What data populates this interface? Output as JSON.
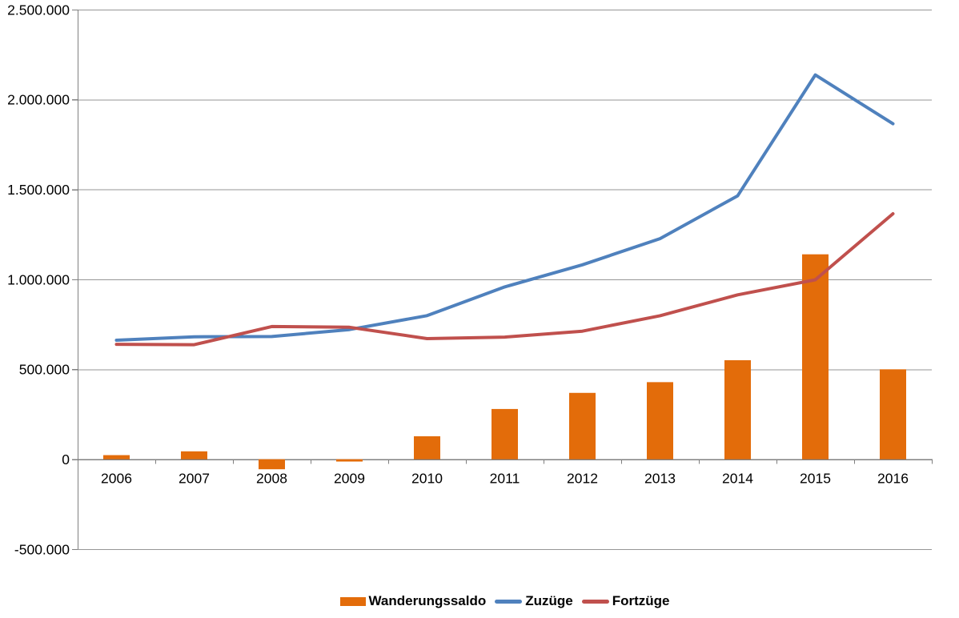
{
  "chart_data": {
    "type": "combo",
    "title": "",
    "categories": [
      "2006",
      "2007",
      "2008",
      "2009",
      "2010",
      "2011",
      "2012",
      "2013",
      "2014",
      "2015",
      "2016"
    ],
    "series": [
      {
        "name": "Wanderungssaldo",
        "chart_type": "bar",
        "color": "#E36C0A",
        "values": [
          22791,
          43912,
          -55743,
          -12782,
          127677,
          279330,
          368945,
          428607,
          550483,
          1139402,
          499944
        ]
      },
      {
        "name": "Zuzüge",
        "chart_type": "line",
        "color": "#4F81BD",
        "values": [
          661855,
          680766,
          682146,
          721014,
          798282,
          958299,
          1080936,
          1226493,
          1464724,
          2136954,
          1865122
        ]
      },
      {
        "name": "Fortzüge",
        "chart_type": "line",
        "color": "#C0504D",
        "values": [
          639064,
          636854,
          737889,
          733796,
          670605,
          678969,
          711991,
          797886,
          914241,
          997552,
          1365178
        ]
      }
    ],
    "xlabel": "",
    "ylabel": "",
    "ylim": [
      -500000,
      2500000
    ],
    "y_axis": {
      "tick_interval": 500000,
      "ticks": [
        {
          "value": 2500000,
          "label": "2.500.000"
        },
        {
          "value": 2000000,
          "label": "2.000.000"
        },
        {
          "value": 1500000,
          "label": "1.500.000"
        },
        {
          "value": 1000000,
          "label": "1.000.000"
        },
        {
          "value": 500000,
          "label": "500.000"
        },
        {
          "value": 0,
          "label": "0"
        },
        {
          "value": -500000,
          "label": "-500.000"
        }
      ]
    },
    "grid": true,
    "legend_position": "bottom",
    "colors": {
      "background": "#FFFFFF",
      "gridline": "#969696",
      "axis": "#808080",
      "text": "#000000"
    }
  }
}
